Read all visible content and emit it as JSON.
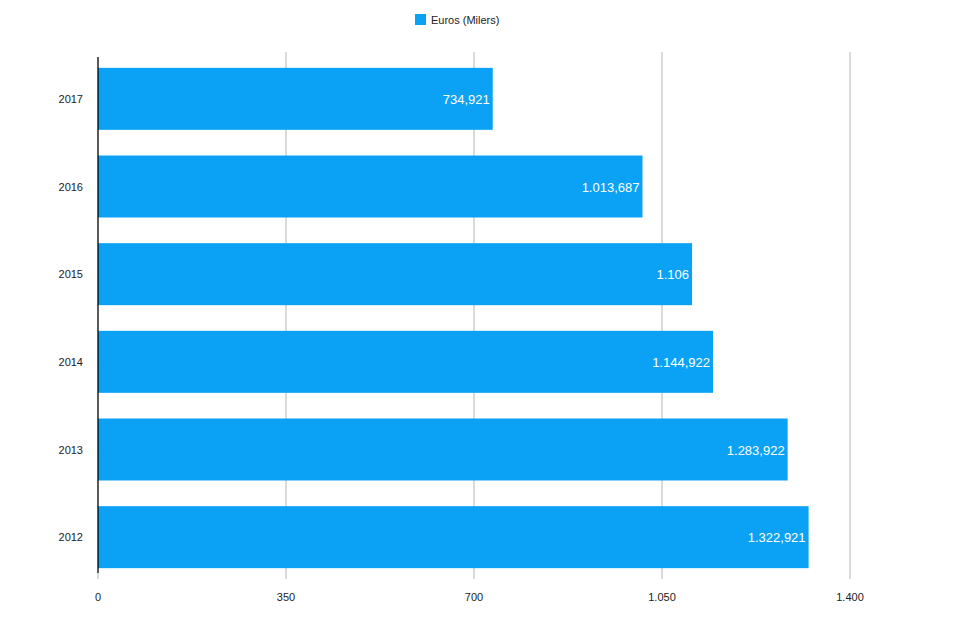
{
  "chart_data": {
    "type": "bar",
    "orientation": "horizontal",
    "categories": [
      "2017",
      "2016",
      "2015",
      "2014",
      "2013",
      "2012"
    ],
    "series": [
      {
        "name": "Euros (Milers)",
        "color": "#0ba2f5",
        "values": [
          734.921,
          1013.687,
          1106,
          1144.922,
          1283.922,
          1322.921
        ],
        "value_labels": [
          "734,921",
          "1.013,687",
          "1.106",
          "1.144,922",
          "1.283,922",
          "1.322,921"
        ]
      }
    ],
    "xlim": [
      0,
      1400
    ],
    "xticks": [
      0,
      350,
      700,
      {
        "value": 1050,
        "label": "1.050"
      },
      {
        "value": 1400,
        "label": "1.400"
      }
    ],
    "grid": true,
    "legend": "top",
    "data_labels": true
  }
}
